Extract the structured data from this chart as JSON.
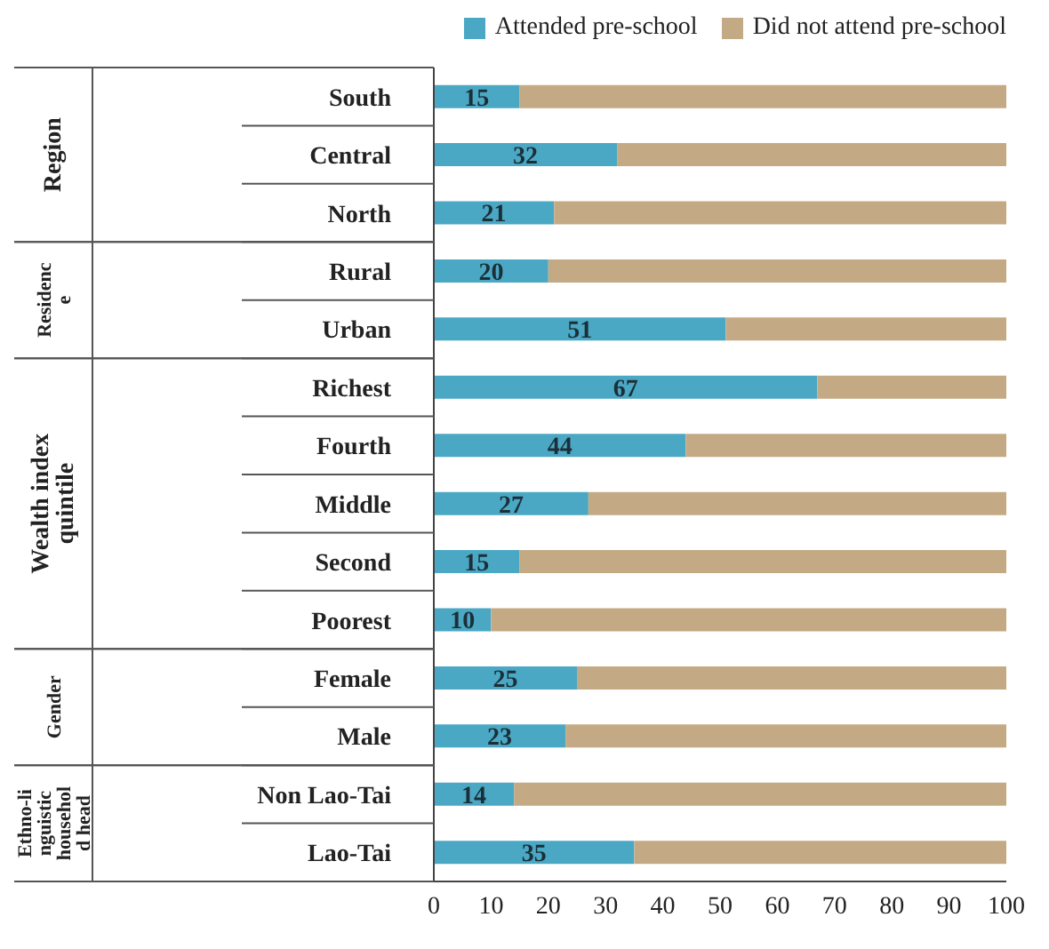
{
  "chart_data": {
    "type": "bar",
    "orientation": "horizontal",
    "stacked": true,
    "categories": [
      "South",
      "Central",
      "North",
      "Rural",
      "Urban",
      "Richest",
      "Fourth",
      "Middle",
      "Second",
      "Poorest",
      "Female",
      "Male",
      "Non Lao-Tai",
      "Lao-Tai"
    ],
    "series": [
      {
        "name": "Attended pre-school",
        "color": "#4aa8c4",
        "values": [
          15,
          32,
          21,
          20,
          51,
          67,
          44,
          27,
          15,
          10,
          25,
          23,
          14,
          35
        ],
        "value_labels": [
          "15",
          "32",
          "21",
          "20",
          "51",
          "67",
          "44",
          "27",
          "15",
          "10",
          "25",
          "23",
          "14",
          "35"
        ]
      },
      {
        "name": "Did not attend pre-school",
        "color": "#c4aa84",
        "values": [
          85,
          68,
          79,
          80,
          49,
          33,
          56,
          73,
          85,
          90,
          75,
          77,
          86,
          65
        ]
      }
    ],
    "xlim": [
      0,
      100
    ],
    "xticks": [
      0,
      10,
      20,
      30,
      40,
      50,
      60,
      70,
      80,
      90,
      100
    ],
    "annotations": [
      "Region",
      "Residence",
      "Wealth index quintile",
      "Gender",
      "Ethno-linguistic household head"
    ],
    "legend": "top right"
  }
}
